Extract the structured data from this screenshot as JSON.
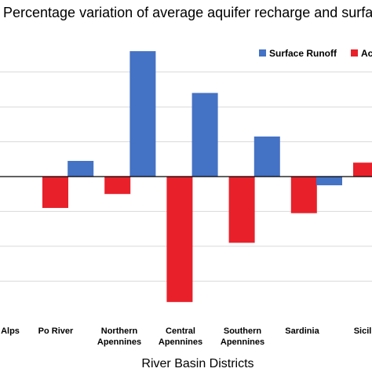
{
  "chart_data": {
    "type": "bar",
    "title": "Percentage variation of average aquifer recharge and surface",
    "xlabel": "River Basin Districts",
    "ylabel": "",
    "categories": [
      "Alps",
      "Po River",
      "Northern Apennines",
      "Central Apennines",
      "Southern Apennines",
      "Sardinia",
      "Sicily"
    ],
    "category_display": [
      "Alps",
      "Po River",
      "Northern\nApennines",
      "Central\nApennines",
      "Southern\nApennines",
      "Sardinia",
      "Sicil"
    ],
    "series": [
      {
        "name": "Surface Runoff",
        "color": "#4472C4",
        "values": [
          null,
          9,
          72,
          48,
          23,
          -5,
          12
        ]
      },
      {
        "name": "Ac",
        "color": "#E8202A",
        "values": [
          -18,
          -10,
          -72,
          -38,
          -21,
          8,
          -12
        ]
      }
    ],
    "ylim": [
      -80,
      80
    ],
    "gridlines": [
      -60,
      -40,
      -20,
      20,
      40,
      60
    ],
    "grid": true,
    "legend_position": "top-right"
  }
}
